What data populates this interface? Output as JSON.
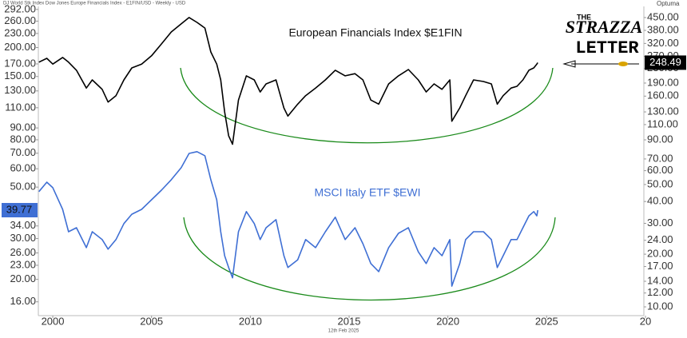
{
  "header": "DJ World Stk Index Dow Jones Europe Financials Index - E1FIN/USD - Weekly - USD",
  "brand": "Optuma",
  "logo": {
    "line1": "THE",
    "line2": "STRAZZA",
    "line3": "LETTER"
  },
  "footer": "12th Feb 2025",
  "chart_data": {
    "type": "line",
    "log_scale": true,
    "grid": false,
    "xlim": [
      1999.27,
      2029.92
    ],
    "xticks": [
      2000,
      2005,
      2010,
      2015,
      2020,
      2025,
      {
        "value": 2030,
        "label": "20"
      }
    ],
    "ylim": [
      13.95,
      301
    ],
    "yticks": [
      {
        "value": 292,
        "label": "292.00"
      },
      {
        "value": 260,
        "label": "260.00"
      },
      {
        "value": 230,
        "label": "230.00"
      },
      {
        "value": 200,
        "label": "200.00"
      },
      {
        "value": 170,
        "label": "170.00"
      },
      {
        "value": 150,
        "label": "150.00"
      },
      {
        "value": 130,
        "label": "130.00"
      },
      {
        "value": 110,
        "label": "110.00"
      },
      {
        "value": 90,
        "label": "90.00"
      },
      {
        "value": 80,
        "label": "80.00"
      },
      {
        "value": 70,
        "label": "70.00"
      },
      {
        "value": 60,
        "label": "60.00"
      },
      {
        "value": 50,
        "label": "50.00"
      },
      {
        "value": 34,
        "label": "34.00"
      },
      {
        "value": 30,
        "label": "30.00"
      },
      {
        "value": 26,
        "label": "26.00"
      },
      {
        "value": 23,
        "label": "23.00"
      },
      {
        "value": 20,
        "label": "20.00"
      },
      {
        "value": 16,
        "label": "16.00"
      }
    ],
    "y2lim": [
      8.91,
      521
    ],
    "y2ticks": [
      {
        "value": 450,
        "label": "450.00"
      },
      {
        "value": 380,
        "label": "380.00"
      },
      {
        "value": 320,
        "label": "320.00"
      },
      {
        "value": 270,
        "label": "270.00"
      },
      {
        "value": 230,
        "label": "230.00"
      },
      {
        "value": 190,
        "label": "190.00"
      },
      {
        "value": 160,
        "label": "160.00"
      },
      {
        "value": 130,
        "label": "130.00"
      },
      {
        "value": 110,
        "label": "110.00"
      },
      {
        "value": 90,
        "label": "90.00"
      },
      {
        "value": 70,
        "label": "70.00"
      },
      {
        "value": 60,
        "label": "60.00"
      },
      {
        "value": 50,
        "label": "50.00"
      },
      {
        "value": 40,
        "label": "40.00"
      },
      {
        "value": 30,
        "label": "30.00"
      },
      {
        "value": 24,
        "label": "24.00"
      },
      {
        "value": 20,
        "label": "20.00"
      },
      {
        "value": 17,
        "label": "17.00"
      },
      {
        "value": 14,
        "label": "14.00"
      },
      {
        "value": 12,
        "label": "12.00"
      },
      {
        "value": 10,
        "label": "10.00"
      }
    ],
    "x": [
      1999.3,
      1999.7,
      2000,
      2000.5,
      2000.8,
      2001.2,
      2001.7,
      2002,
      2002.5,
      2002.8,
      2003.2,
      2003.6,
      2004,
      2004.5,
      2005,
      2005.5,
      2006,
      2006.5,
      2006.9,
      2007.3,
      2007.7,
      2008,
      2008.3,
      2008.5,
      2008.7,
      2008.9,
      2009.1,
      2009.4,
      2009.8,
      2010.2,
      2010.5,
      2010.8,
      2011.3,
      2011.7,
      2011.9,
      2012.4,
      2012.8,
      2013.3,
      2013.8,
      2014.3,
      2014.8,
      2015.3,
      2015.7,
      2016.1,
      2016.5,
      2017,
      2017.5,
      2018,
      2018.5,
      2018.9,
      2019.3,
      2019.7,
      2020.1,
      2020.2,
      2020.6,
      2020.9,
      2021.3,
      2021.8,
      2022.2,
      2022.5,
      2022.8,
      2023.2,
      2023.5,
      2023.8,
      2024.1,
      2024.35,
      2024.5,
      2024.55
    ],
    "series": [
      {
        "name": "European Financials Index $E1FIN",
        "color": "#000000",
        "axis": "y2",
        "values": [
          250,
          263,
          244,
          266,
          250,
          225,
          178,
          198,
          175,
          148,
          161,
          198,
          232,
          244,
          272,
          318,
          372,
          414,
          450,
          422,
          392,
          286,
          244,
          198,
          130,
          95,
          85,
          152,
          209,
          198,
          169,
          188,
          198,
          137,
          123,
          144,
          161,
          178,
          198,
          225,
          209,
          215,
          198,
          152,
          144,
          188,
          209,
          227,
          198,
          169,
          188,
          175,
          198,
          115,
          137,
          161,
          198,
          194,
          188,
          144,
          161,
          178,
          182,
          198,
          225,
          232,
          244,
          248.49
        ]
      },
      {
        "name": "MSCI Italy ETF $EWI",
        "color": "#3f6fd4",
        "values": [
          47.8,
          52.5,
          49.7,
          40.1,
          32.1,
          33.4,
          27.4,
          32.1,
          29.7,
          27.0,
          29.7,
          34.8,
          38.2,
          40.1,
          44.1,
          48.5,
          53.8,
          60.6,
          69.9,
          71.1,
          68.3,
          53.8,
          44.1,
          32.1,
          25.3,
          22.5,
          20.3,
          32.1,
          39.2,
          34.8,
          29.7,
          33.4,
          36.2,
          25.3,
          22.5,
          24.3,
          29.7,
          27.4,
          32.1,
          37.1,
          29.7,
          33.4,
          28.5,
          23.4,
          21.6,
          27.4,
          31.6,
          33.4,
          26.3,
          23.4,
          27.4,
          25.3,
          29.7,
          18.7,
          23.4,
          29.7,
          32.1,
          32.1,
          29.7,
          22.5,
          25.3,
          29.7,
          29.7,
          33.4,
          37.6,
          39.2,
          37.6,
          39.77
        ]
      }
    ]
  }
}
